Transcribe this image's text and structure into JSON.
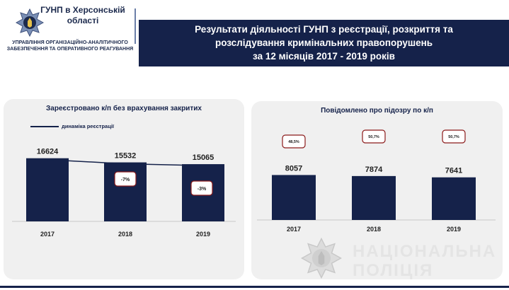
{
  "header": {
    "org_name": "ГУНП в Херсонській області",
    "department": "УПРАВЛІННЯ ОРГАНІЗАЦІЙНО-АНАЛІТИЧНОГО ЗАБЕЗПЕЧЕННЯ ТА ОПЕРАТИВНОГО РЕАГУВАННЯ",
    "title_line1": "Результати діяльності ГУНП з реєстрації, розкриття та",
    "title_line2": "розслідування кримінальних правопорушень",
    "title_line3": "за  12 місяців 2017 - 2019 років"
  },
  "watermark": {
    "line1": "НАЦІОНАЛЬНА",
    "line2": "ПОЛІЦІЯ"
  },
  "colors": {
    "navy": "#15224a",
    "panel": "#f0f0f0",
    "badge_border": "#8b1a1a"
  },
  "chart_data": [
    {
      "type": "bar",
      "title": "Зареєстровано к/п без врахування закритих",
      "categories": [
        "2017",
        "2018",
        "2019"
      ],
      "values": [
        16624,
        15532,
        15065
      ],
      "value_labels": [
        "16624",
        "15532",
        "15065"
      ],
      "legend": "динаміка реєстрації",
      "line_values": [
        16624,
        15532,
        15065
      ],
      "changes": [
        "",
        "-7%",
        "-3%"
      ],
      "ylim": [
        0,
        17500
      ],
      "grid": false
    },
    {
      "type": "bar",
      "title": "Повідомлено про підозру по к/п",
      "categories": [
        "2017",
        "2018",
        "2019"
      ],
      "values": [
        8057,
        7874,
        7641
      ],
      "value_labels": [
        "8057",
        "7874",
        "7641"
      ],
      "shares": [
        "48,5%",
        "50,7%",
        "50,7%"
      ],
      "ylim": [
        0,
        9000
      ],
      "grid": false
    }
  ]
}
